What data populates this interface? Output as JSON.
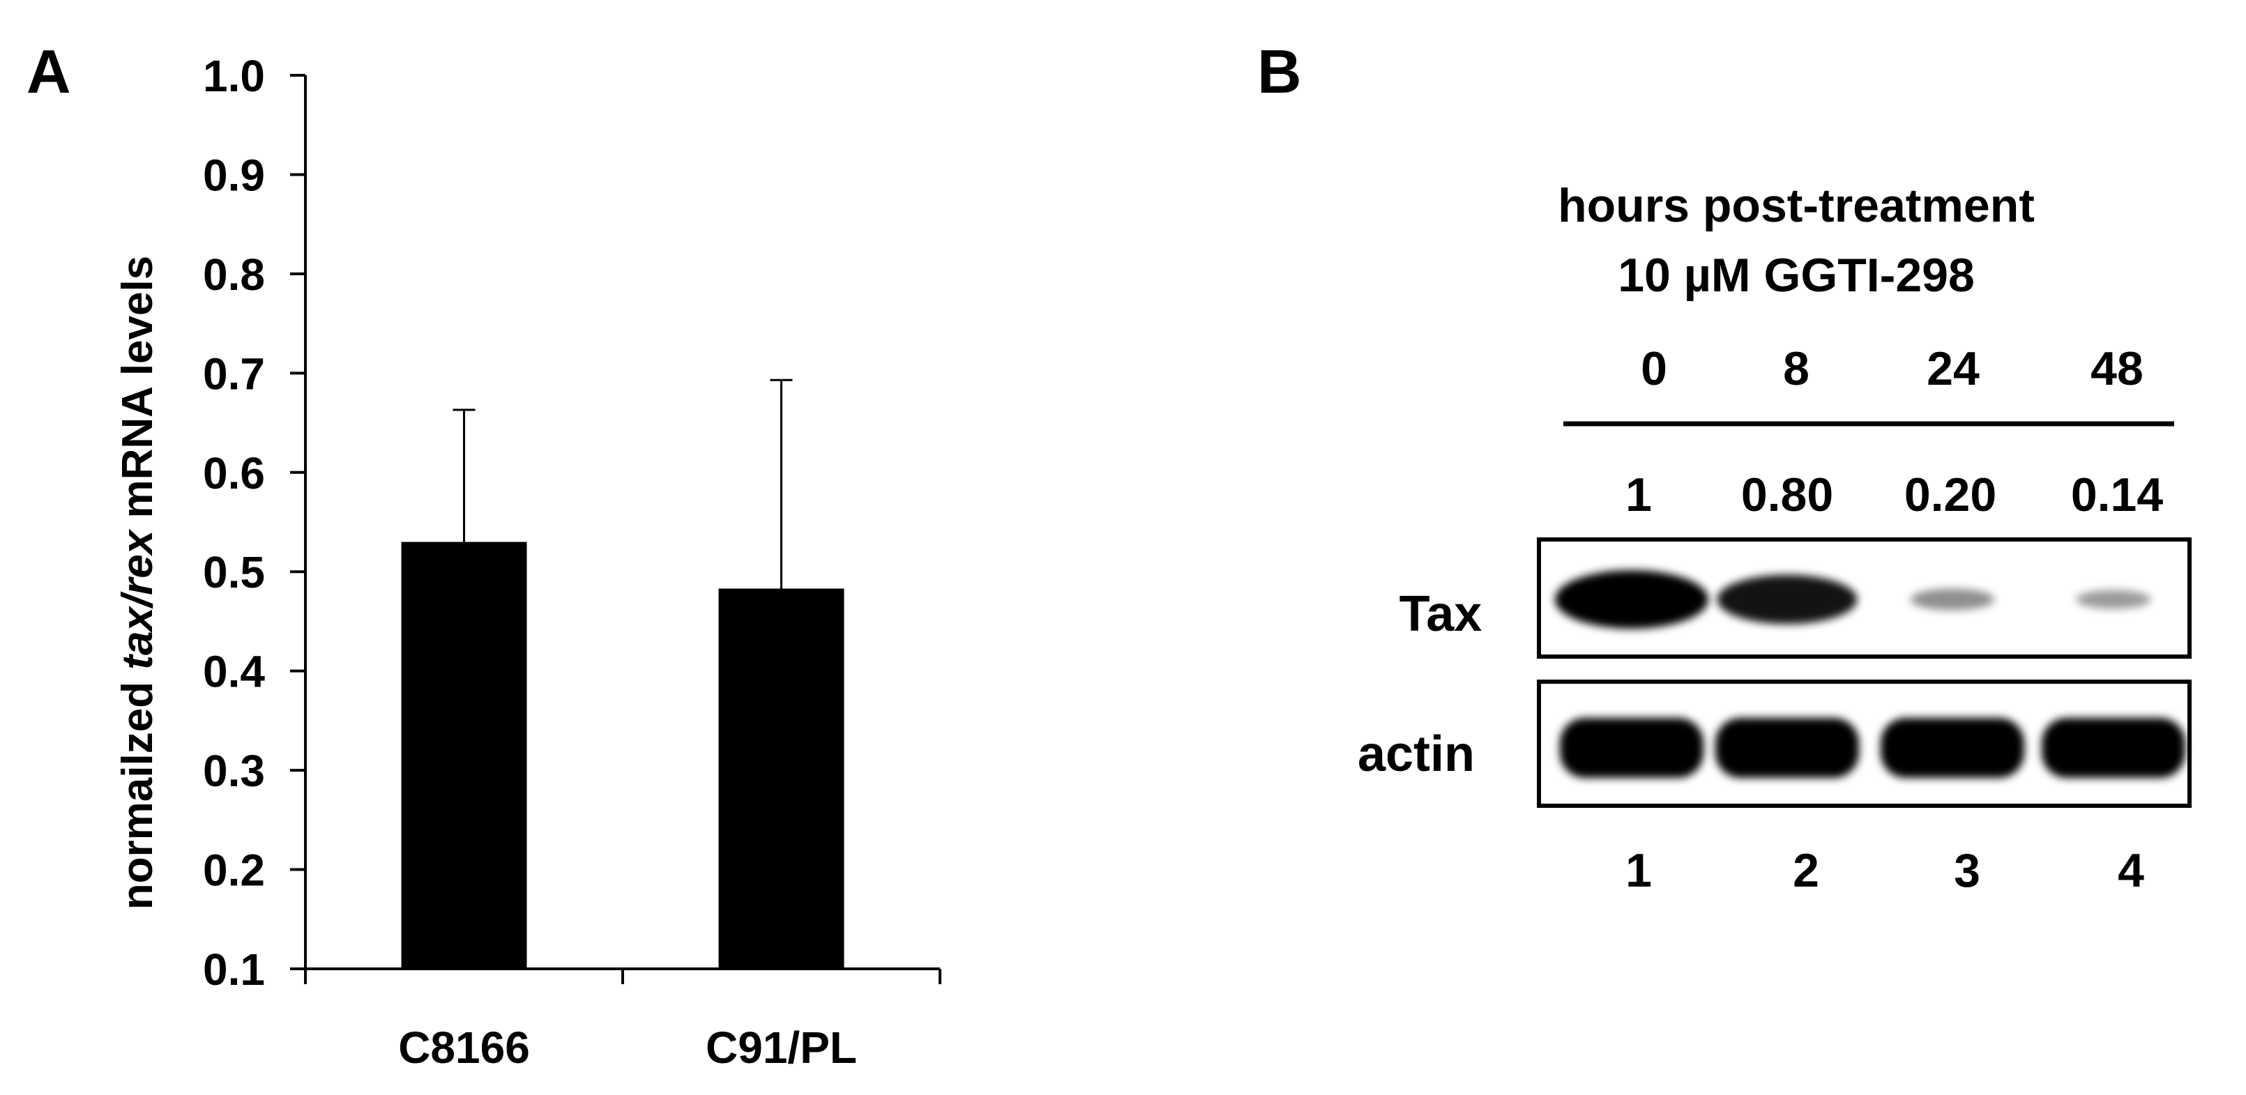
{
  "panel_a": {
    "label": "A",
    "ylabel_before": "normailzed ",
    "ylabel_italic": "tax/rex",
    "ylabel_after": " mRNA levels",
    "tick_labels": [
      "0.1",
      "0.2",
      "0.3",
      "0.4",
      "0.5",
      "0.6",
      "0.7",
      "0.8",
      "0.9",
      "1.0"
    ]
  },
  "chart_data": {
    "type": "bar",
    "categories": [
      "C8166",
      "C91/PL"
    ],
    "values": [
      0.53,
      0.483
    ],
    "errors": [
      0.133,
      0.21
    ],
    "ylabel": "normailzed tax/rex mRNA levels",
    "ylim": [
      0.1,
      1.0
    ],
    "yticks": [
      0.1,
      0.2,
      0.3,
      0.4,
      0.5,
      0.6,
      0.7,
      0.8,
      0.9,
      1.0
    ],
    "grid": false,
    "bar_color": "#000000"
  },
  "panel_b": {
    "label": "B",
    "title_line1": "hours post-treatment",
    "title_line2": "10 µM GGTI-298",
    "timepoints": [
      "0",
      "8",
      "24",
      "48"
    ],
    "quantification": [
      "1",
      "0.80",
      "0.20",
      "0.14"
    ],
    "tax_intensity": [
      1,
      0.8,
      0.2,
      0.14
    ],
    "row_labels": {
      "tax": "Tax",
      "actin": "actin"
    },
    "lanes": [
      "1",
      "2",
      "3",
      "4"
    ]
  }
}
